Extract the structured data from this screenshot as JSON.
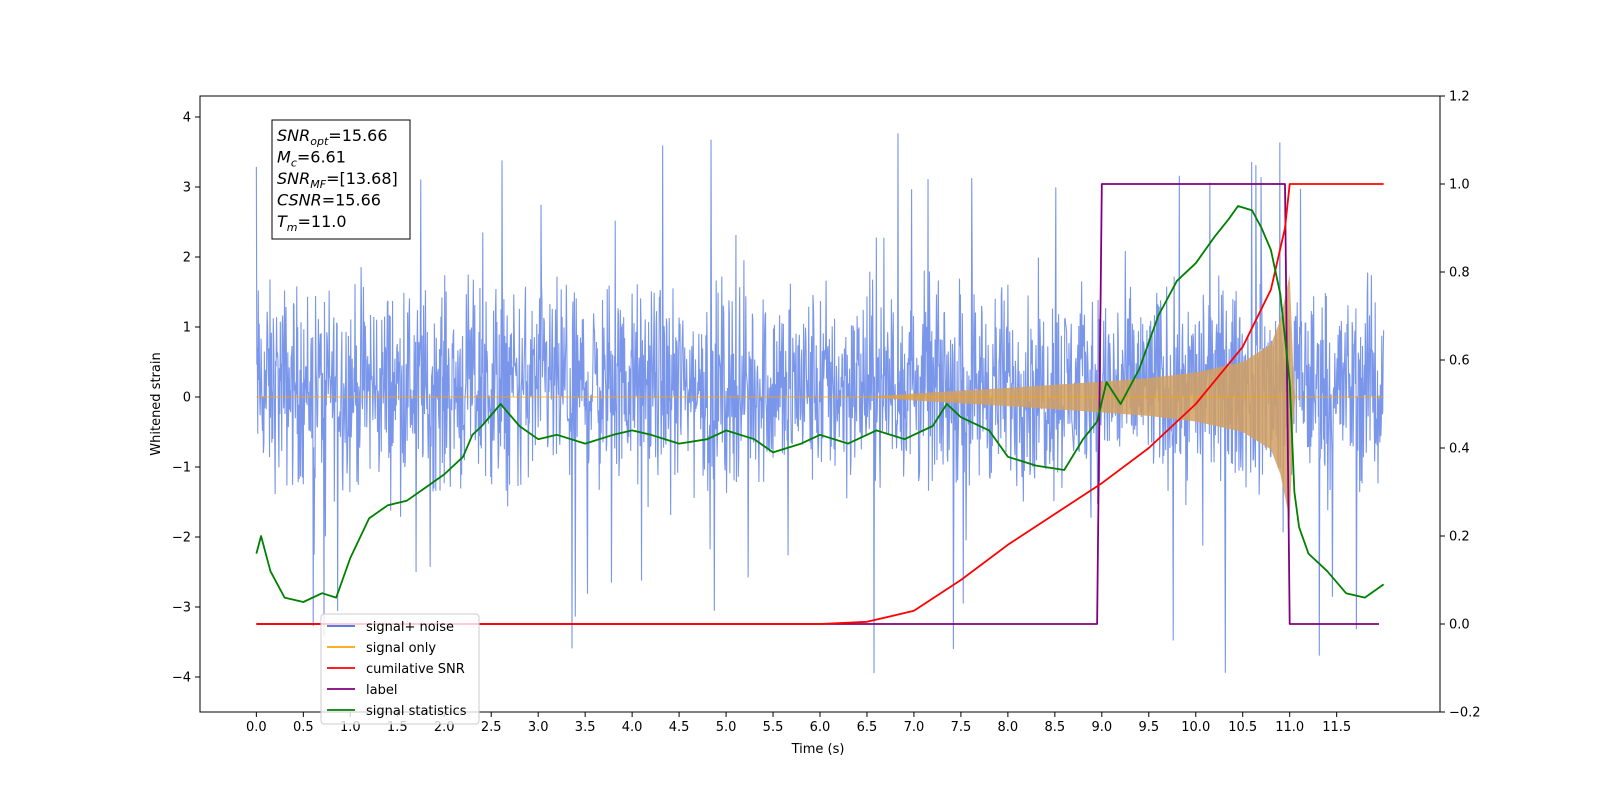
{
  "chart_data": {
    "type": "line",
    "xlabel": "Time (s)",
    "ylabel": "Whitened strain",
    "xlim": [
      -0.6,
      12.6
    ],
    "ylim_left": [
      -4.5,
      4.3
    ],
    "ylim_right": [
      -0.2,
      1.2
    ],
    "x_ticks": [
      "0.0",
      "0.5",
      "1.0",
      "1.5",
      "2.0",
      "2.5",
      "3.0",
      "3.5",
      "4.0",
      "4.5",
      "5.0",
      "5.5",
      "6.0",
      "6.5",
      "7.0",
      "7.5",
      "8.0",
      "8.5",
      "9.0",
      "9.5",
      "10.0",
      "10.5",
      "11.0",
      "11.5"
    ],
    "y_ticks_left": [
      "4",
      "3",
      "2",
      "1",
      "0",
      "−1",
      "−2",
      "−3",
      "−4"
    ],
    "y_ticks_right": [
      "1.2",
      "1.0",
      "0.8",
      "0.6",
      "0.4",
      "0.2",
      "0.0",
      "−0.2"
    ],
    "grid": false,
    "legend": {
      "placement": "lower-left",
      "entries": [
        {
          "label": "signal+ noise",
          "color": "#4169e1"
        },
        {
          "label": "signal only",
          "color": "#ffa500"
        },
        {
          "label": "cumilative SNR",
          "color": "#ff0000"
        },
        {
          "label": "label",
          "color": "#800080"
        },
        {
          "label": "signal statistics",
          "color": "#008000"
        }
      ]
    },
    "annotation": {
      "lines": [
        {
          "name": "SNR",
          "sub": "opt",
          "value": "=15.66"
        },
        {
          "name": "M",
          "sub": "c",
          "value": "=6.61"
        },
        {
          "name": "SNR",
          "sub": "MF",
          "value": "=[13.68]"
        },
        {
          "name": "CSNR",
          "sub": "",
          "value": "=15.66"
        },
        {
          "name": "T",
          "sub": "m",
          "value": "=11.0"
        }
      ]
    },
    "series": [
      {
        "name": "signal+ noise",
        "axis": "left",
        "color": "#4169e1",
        "noise_envelope": {
          "x": [
            0.0,
            12.0
          ],
          "typical_range": [
            -1.9,
            2.2
          ],
          "max": 3.8,
          "min": -4.1
        }
      },
      {
        "name": "signal only",
        "axis": "left",
        "color": "#ffa500",
        "envelope": {
          "x": [
            0.0,
            6.5,
            7.0,
            8.0,
            9.0,
            9.5,
            10.0,
            10.5,
            10.8,
            10.9,
            11.0,
            11.05,
            12.0
          ],
          "amplitude": [
            0.0,
            0.0,
            0.05,
            0.13,
            0.22,
            0.27,
            0.35,
            0.5,
            0.75,
            1.1,
            1.75,
            0.0,
            0.0
          ]
        }
      },
      {
        "name": "cumilative SNR",
        "axis": "right",
        "color": "#ff0000",
        "x": [
          0.0,
          6.0,
          6.5,
          7.0,
          7.5,
          8.0,
          8.5,
          9.0,
          9.5,
          10.0,
          10.5,
          10.8,
          10.95,
          11.0,
          12.0
        ],
        "y": [
          0.0,
          0.0,
          0.005,
          0.03,
          0.1,
          0.18,
          0.25,
          0.32,
          0.4,
          0.5,
          0.63,
          0.76,
          0.9,
          1.0,
          1.0
        ]
      },
      {
        "name": "label",
        "axis": "right",
        "color": "#800080",
        "x": [
          0.0,
          8.95,
          9.0,
          10.95,
          11.0,
          11.95
        ],
        "y": [
          0.0,
          0.0,
          1.0,
          1.0,
          0.0,
          0.0
        ]
      },
      {
        "name": "signal statistics",
        "axis": "right",
        "color": "#008000",
        "x": [
          0.0,
          0.05,
          0.15,
          0.3,
          0.5,
          0.7,
          0.85,
          1.0,
          1.2,
          1.4,
          1.6,
          1.8,
          2.0,
          2.2,
          2.3,
          2.4,
          2.6,
          2.8,
          3.0,
          3.2,
          3.5,
          3.8,
          4.0,
          4.2,
          4.5,
          4.8,
          5.0,
          5.3,
          5.5,
          5.8,
          6.0,
          6.3,
          6.6,
          6.9,
          7.2,
          7.35,
          7.5,
          7.8,
          8.0,
          8.3,
          8.6,
          8.8,
          8.95,
          9.05,
          9.2,
          9.4,
          9.6,
          9.8,
          10.0,
          10.2,
          10.35,
          10.45,
          10.6,
          10.7,
          10.8,
          10.9,
          11.0,
          11.05,
          11.1,
          11.2,
          11.4,
          11.6,
          11.8,
          12.0
        ],
        "y": [
          0.16,
          0.2,
          0.12,
          0.06,
          0.05,
          0.07,
          0.06,
          0.15,
          0.24,
          0.27,
          0.28,
          0.31,
          0.34,
          0.38,
          0.43,
          0.45,
          0.5,
          0.45,
          0.42,
          0.43,
          0.41,
          0.43,
          0.44,
          0.43,
          0.41,
          0.42,
          0.44,
          0.42,
          0.39,
          0.41,
          0.43,
          0.41,
          0.44,
          0.42,
          0.45,
          0.5,
          0.47,
          0.44,
          0.38,
          0.36,
          0.35,
          0.42,
          0.46,
          0.55,
          0.5,
          0.58,
          0.7,
          0.78,
          0.82,
          0.88,
          0.92,
          0.95,
          0.94,
          0.9,
          0.85,
          0.75,
          0.55,
          0.3,
          0.22,
          0.16,
          0.12,
          0.07,
          0.06,
          0.09
        ]
      }
    ]
  }
}
